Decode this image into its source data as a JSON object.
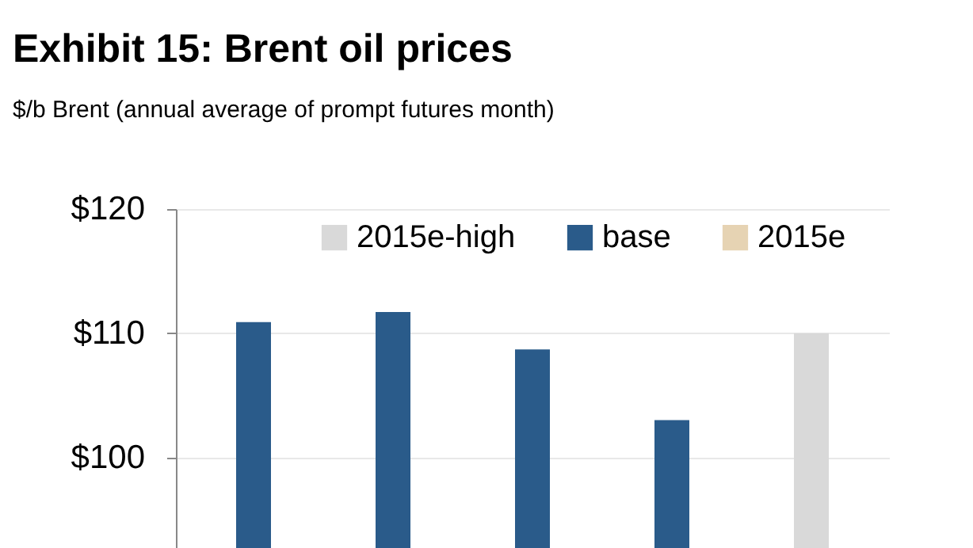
{
  "chart_data": {
    "type": "bar",
    "title": "Exhibit 15: Brent oil prices",
    "subtitle": "$/b Brent (annual average of prompt futures month)",
    "categories": [
      null,
      null,
      null,
      null,
      null
    ],
    "series": [
      {
        "name": "2015e-high",
        "color": "#d9d9d9",
        "values": [
          null,
          null,
          null,
          null,
          110.0
        ]
      },
      {
        "name": "base",
        "color": "#2a5b8a",
        "values": [
          110.9,
          111.7,
          108.7,
          103.0,
          null
        ]
      },
      {
        "name": "2015e",
        "color": "#e6d3b3",
        "values": [
          null,
          null,
          null,
          null,
          null
        ]
      }
    ],
    "ylim": [
      92.7,
      120
    ],
    "yticks": [
      {
        "value": 100,
        "label": "$100"
      },
      {
        "value": 110,
        "label": "$110"
      },
      {
        "value": 120,
        "label": "$120"
      }
    ],
    "grid": "y",
    "legend": "top",
    "tick_labels": "y"
  }
}
